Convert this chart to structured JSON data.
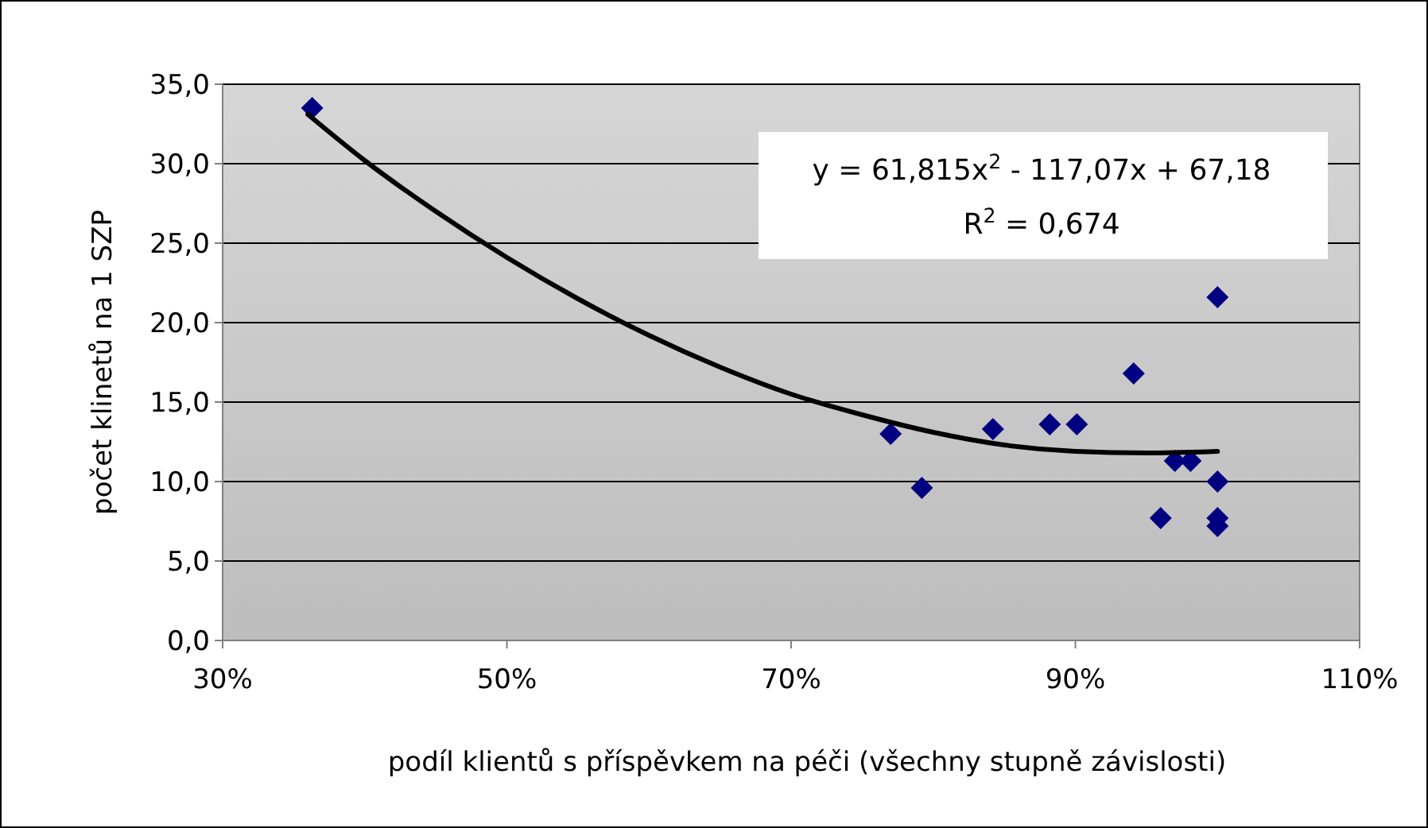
{
  "chart_data": {
    "type": "scatter",
    "xlabel": "podíl klientů s příspěvkem na péči (všechny stupně závislosti)",
    "ylabel": "počet klinetů na 1 SZP",
    "annotations": [
      "y = 61,815x$^{2}$ - 117,07x + 67,18",
      "R$^{2}$ = 0,674"
    ],
    "series": [
      {
        "color": "#000080",
        "marker": "diamond",
        "x": [
          36.3,
          77.0,
          79.2,
          84.2,
          88.2,
          90.1,
          94.1,
          96.0,
          97.0,
          98.1,
          100,
          100,
          100,
          100
        ],
        "values": [
          33.5,
          13.0,
          9.6,
          13.3,
          13.6,
          13.6,
          16.8,
          7.7,
          11.3,
          11.3,
          21.6,
          10.0,
          7.7,
          7.2
        ]
      },
      {
        "type": "line",
        "color": "#000000",
        "marker": "none",
        "line_style": "solid",
        "x": [
          36,
          40,
          45,
          50,
          55,
          60,
          65,
          70,
          75,
          80,
          85,
          90,
          95,
          100
        ],
        "values": [
          33.1,
          30.2,
          27.0,
          24.1,
          21.5,
          19.2,
          17.2,
          15.5,
          14.2,
          13.1,
          12.3,
          11.9,
          11.8,
          11.9
        ]
      }
    ],
    "xlim": [
      30,
      110
    ],
    "xticks": [
      {
        "value": 30,
        "label": "30%"
      },
      {
        "value": 50,
        "label": "50%"
      },
      {
        "value": 70,
        "label": "70%"
      },
      {
        "value": 90,
        "label": "90%"
      },
      {
        "value": 110,
        "label": "110%"
      }
    ],
    "ylim": [
      0,
      35
    ],
    "yticks": [
      {
        "value": 0,
        "label": "0,0"
      },
      {
        "value": 5,
        "label": "5,0"
      },
      {
        "value": 10,
        "label": "10,0"
      },
      {
        "value": 15,
        "label": "15,0"
      },
      {
        "value": 20,
        "label": "20,0"
      },
      {
        "value": 25,
        "label": "25,0"
      },
      {
        "value": 30,
        "label": "30,0"
      },
      {
        "value": 35,
        "label": "35,0"
      }
    ],
    "grid": "y"
  }
}
